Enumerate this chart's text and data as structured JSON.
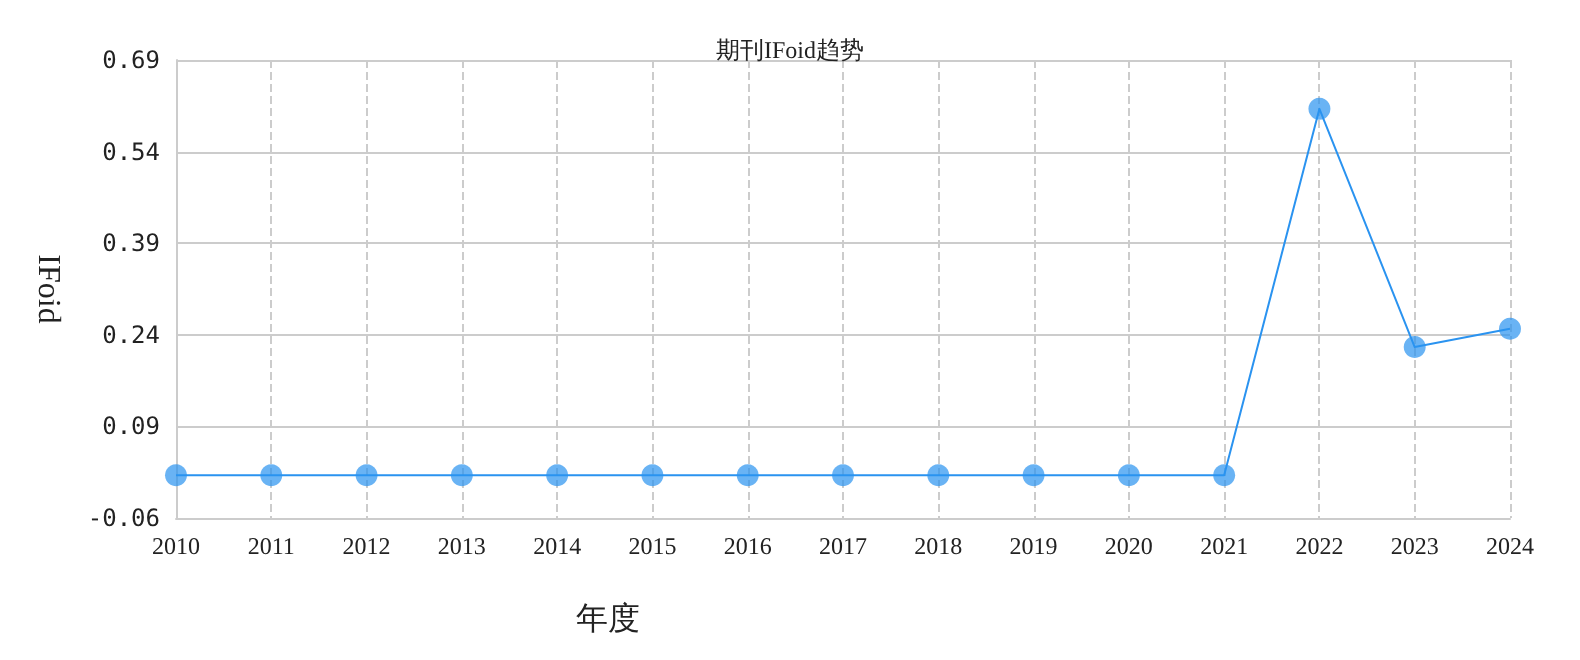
{
  "chart_data": {
    "type": "line",
    "title": "期刊IFoid趋势",
    "xlabel": "年度",
    "ylabel": "IFoid",
    "categories": [
      "2010",
      "2011",
      "2012",
      "2013",
      "2014",
      "2015",
      "2016",
      "2017",
      "2018",
      "2019",
      "2020",
      "2021",
      "2022",
      "2023",
      "2024"
    ],
    "series": [
      {
        "color": "#2a93f0",
        "values": [
          0.01,
          0.01,
          0.01,
          0.01,
          0.01,
          0.01,
          0.01,
          0.01,
          0.01,
          0.01,
          0.01,
          0.01,
          0.61,
          0.22,
          0.25
        ]
      }
    ],
    "ylim": [
      -0.06,
      0.69
    ],
    "yticks": [
      -0.06,
      0.09,
      0.24,
      0.39,
      0.54,
      0.69
    ],
    "grid": true,
    "marker": "circle",
    "line_style": "solid"
  }
}
